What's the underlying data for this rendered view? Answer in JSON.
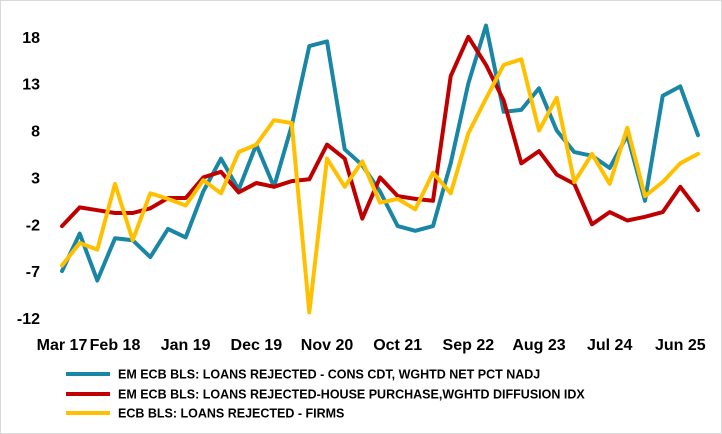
{
  "chart_data": {
    "type": "line",
    "title": "",
    "xlabel": "",
    "ylabel": "",
    "ylim": [
      -12,
      20
    ],
    "y_ticks": [
      18,
      13,
      8,
      3,
      -2,
      -7,
      -12
    ],
    "x_tick_labels": [
      "Mar 17",
      "Feb 18",
      "Jan 19",
      "Dec 19",
      "Nov 20",
      "Oct 21",
      "Sep 22",
      "Aug 23",
      "Jul 24",
      "Jun 25"
    ],
    "x_tick_index": [
      0,
      3,
      7,
      11,
      15,
      19,
      23,
      27,
      31,
      35
    ],
    "grid": false,
    "legend_position": "bottom",
    "series": [
      {
        "name": "EM ECB BLS: LOANS REJECTED - CONS CDT, WGHTD NET PCT NADJ",
        "color": "#1a86a6",
        "values": [
          -7.0,
          -3.0,
          -8.0,
          -3.5,
          -3.7,
          -5.5,
          -2.5,
          -3.4,
          1.5,
          5.0,
          1.7,
          6.5,
          2.0,
          8.5,
          17.0,
          17.5,
          6.0,
          4.3,
          1.5,
          -2.2,
          -2.7,
          -2.2,
          4.5,
          13.0,
          19.2,
          10.0,
          10.2,
          12.5,
          8.0,
          5.7,
          5.3,
          4.0,
          7.5,
          0.5,
          11.7,
          12.7,
          7.5
        ]
      },
      {
        "name": "EM ECB BLS: LOANS REJECTED-HOUSE PURCHASE,WGHTD DIFFUSION IDX",
        "color": "#c00000",
        "values": [
          -2.2,
          -0.2,
          -0.5,
          -0.8,
          -0.8,
          -0.3,
          0.8,
          0.8,
          3.0,
          3.6,
          1.4,
          2.4,
          2.0,
          2.6,
          2.8,
          6.5,
          5.0,
          -1.4,
          3.0,
          1.0,
          0.7,
          0.5,
          13.8,
          18.0,
          15.0,
          11.2,
          4.5,
          5.8,
          3.3,
          2.3,
          -2.0,
          -0.7,
          -1.6,
          -1.2,
          -0.7,
          2.0,
          -0.5
        ]
      },
      {
        "name": "ECB BLS: LOANS REJECTED - FIRMS",
        "color": "#ffc000",
        "values": [
          -6.4,
          -4.0,
          -4.7,
          2.3,
          -3.7,
          1.3,
          0.7,
          0.0,
          2.7,
          1.3,
          5.7,
          6.5,
          9.1,
          8.8,
          -11.4,
          5.0,
          2.0,
          4.7,
          0.3,
          0.7,
          -0.4,
          3.5,
          1.3,
          7.7,
          11.4,
          15.0,
          15.6,
          8.0,
          11.5,
          2.5,
          5.5,
          2.3,
          8.3,
          1.0,
          2.5,
          4.5,
          5.5
        ]
      }
    ]
  }
}
